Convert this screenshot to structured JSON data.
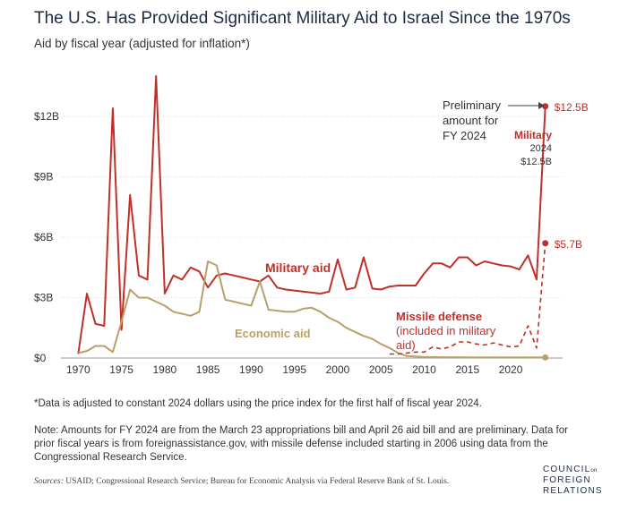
{
  "header": {
    "title": "The U.S. Has Provided Significant Military Aid to Israel Since the 1970s",
    "subtitle": "Aid by fiscal year (adjusted for inflation*)"
  },
  "colors": {
    "military": "#c0302a",
    "economic": "#b9a06a",
    "missile": "#c0302a",
    "grid": "#dcdcdc",
    "text": "#333333"
  },
  "chart_data": {
    "type": "line",
    "xlim": [
      1968,
      2026
    ],
    "ylim": [
      0,
      14
    ],
    "x_ticks": [
      1970,
      1975,
      1980,
      1985,
      1990,
      1995,
      2000,
      2005,
      2010,
      2015,
      2020
    ],
    "y_ticks": [
      {
        "value": 0,
        "label": "$0"
      },
      {
        "value": 3,
        "label": "$3B"
      },
      {
        "value": 6,
        "label": "$6B"
      },
      {
        "value": 9,
        "label": "$9B"
      },
      {
        "value": 12,
        "label": "$12B"
      }
    ],
    "series": [
      {
        "name": "Military aid",
        "style": "solid",
        "points": [
          [
            1970,
            0.2
          ],
          [
            1971,
            3.2
          ],
          [
            1972,
            1.7
          ],
          [
            1973,
            1.6
          ],
          [
            1974,
            12.4
          ],
          [
            1975,
            1.4
          ],
          [
            1976,
            8.1
          ],
          [
            1977,
            4.1
          ],
          [
            1978,
            3.9
          ],
          [
            1979,
            14.0
          ],
          [
            1980,
            3.2
          ],
          [
            1981,
            4.1
          ],
          [
            1982,
            3.9
          ],
          [
            1983,
            4.5
          ],
          [
            1984,
            4.3
          ],
          [
            1985,
            3.5
          ],
          [
            1986,
            4.1
          ],
          [
            1987,
            4.2
          ],
          [
            1988,
            4.1
          ],
          [
            1989,
            4.0
          ],
          [
            1990,
            3.9
          ],
          [
            1991,
            3.8
          ],
          [
            1992,
            4.1
          ],
          [
            1993,
            3.5
          ],
          [
            1994,
            3.4
          ],
          [
            1995,
            3.35
          ],
          [
            1996,
            3.3
          ],
          [
            1997,
            3.25
          ],
          [
            1998,
            3.2
          ],
          [
            1999,
            3.3
          ],
          [
            2000,
            4.9
          ],
          [
            2001,
            3.4
          ],
          [
            2002,
            3.5
          ],
          [
            2003,
            5.0
          ],
          [
            2004,
            3.45
          ],
          [
            2005,
            3.4
          ],
          [
            2006,
            3.55
          ],
          [
            2007,
            3.6
          ],
          [
            2008,
            3.6
          ],
          [
            2009,
            3.6
          ],
          [
            2010,
            4.2
          ],
          [
            2011,
            4.7
          ],
          [
            2012,
            4.7
          ],
          [
            2013,
            4.5
          ],
          [
            2014,
            5.0
          ],
          [
            2015,
            5.0
          ],
          [
            2016,
            4.6
          ],
          [
            2017,
            4.8
          ],
          [
            2018,
            4.7
          ],
          [
            2019,
            4.6
          ],
          [
            2020,
            4.55
          ],
          [
            2021,
            4.4
          ],
          [
            2022,
            5.1
          ],
          [
            2023,
            3.9
          ],
          [
            2024,
            12.5
          ]
        ]
      },
      {
        "name": "Economic aid",
        "style": "solid",
        "points": [
          [
            1970,
            0.25
          ],
          [
            1971,
            0.35
          ],
          [
            1972,
            0.6
          ],
          [
            1973,
            0.6
          ],
          [
            1974,
            0.3
          ],
          [
            1975,
            1.8
          ],
          [
            1976,
            3.4
          ],
          [
            1977,
            3.0
          ],
          [
            1978,
            3.0
          ],
          [
            1979,
            2.8
          ],
          [
            1980,
            2.6
          ],
          [
            1981,
            2.3
          ],
          [
            1982,
            2.2
          ],
          [
            1983,
            2.1
          ],
          [
            1984,
            2.3
          ],
          [
            1985,
            4.8
          ],
          [
            1986,
            4.6
          ],
          [
            1987,
            2.9
          ],
          [
            1988,
            2.8
          ],
          [
            1989,
            2.7
          ],
          [
            1990,
            2.6
          ],
          [
            1991,
            3.8
          ],
          [
            1992,
            2.4
          ],
          [
            1993,
            2.35
          ],
          [
            1994,
            2.3
          ],
          [
            1995,
            2.3
          ],
          [
            1996,
            2.45
          ],
          [
            1997,
            2.5
          ],
          [
            1998,
            2.3
          ],
          [
            1999,
            2.0
          ],
          [
            2000,
            1.8
          ],
          [
            2001,
            1.5
          ],
          [
            2002,
            1.3
          ],
          [
            2003,
            1.1
          ],
          [
            2004,
            0.95
          ],
          [
            2005,
            0.7
          ],
          [
            2006,
            0.5
          ],
          [
            2007,
            0.25
          ],
          [
            2008,
            0.1
          ],
          [
            2010,
            0.05
          ],
          [
            2015,
            0.03
          ],
          [
            2020,
            0.03
          ],
          [
            2024,
            0.03
          ]
        ]
      },
      {
        "name": "Missile defense",
        "style": "dashed",
        "points": [
          [
            2006,
            0.2
          ],
          [
            2007,
            0.2
          ],
          [
            2008,
            0.25
          ],
          [
            2009,
            0.3
          ],
          [
            2010,
            0.3
          ],
          [
            2011,
            0.55
          ],
          [
            2012,
            0.45
          ],
          [
            2013,
            0.55
          ],
          [
            2014,
            0.8
          ],
          [
            2015,
            0.8
          ],
          [
            2016,
            0.7
          ],
          [
            2017,
            0.65
          ],
          [
            2018,
            0.75
          ],
          [
            2019,
            0.65
          ],
          [
            2020,
            0.55
          ],
          [
            2021,
            0.6
          ],
          [
            2022,
            1.6
          ],
          [
            2023,
            0.5
          ],
          [
            2024,
            5.7
          ]
        ]
      }
    ],
    "labels": {
      "military": "Military aid",
      "economic": "Economic aid",
      "missile_line1": "Missile defense",
      "missile_line2": "(included in military",
      "missile_line3": "aid)"
    },
    "annotations": {
      "prelim_line1": "Preliminary",
      "prelim_line2": "amount for",
      "prelim_line3": "FY 2024",
      "military_end": "$12.5B",
      "missile_end": "$5.7B",
      "tooltip_title": "Military",
      "tooltip_year": "2024",
      "tooltip_value": "$12.5B"
    }
  },
  "notes": {
    "footnote": "*Data is adjusted to constant 2024 dollars using the price index for the first half of fiscal year 2024.",
    "note": "Note: Amounts for FY 2024 are from the March 23 appropriations bill and April 26 aid bill and are preliminary. Data for prior fiscal years is from foreignassistance.gov, with missile defense included starting in 2006 using data from the Congressional Research Service.",
    "sources_label": "Sources:",
    "sources_text": " USAID; Congressional Research Service; Bureau for Economic Analysis via Federal Reserve Bank of St. Louis."
  },
  "logo": {
    "line1": "COUNCIL",
    "line1_small": "on",
    "line2": "FOREIGN",
    "line3": "RELATIONS"
  }
}
